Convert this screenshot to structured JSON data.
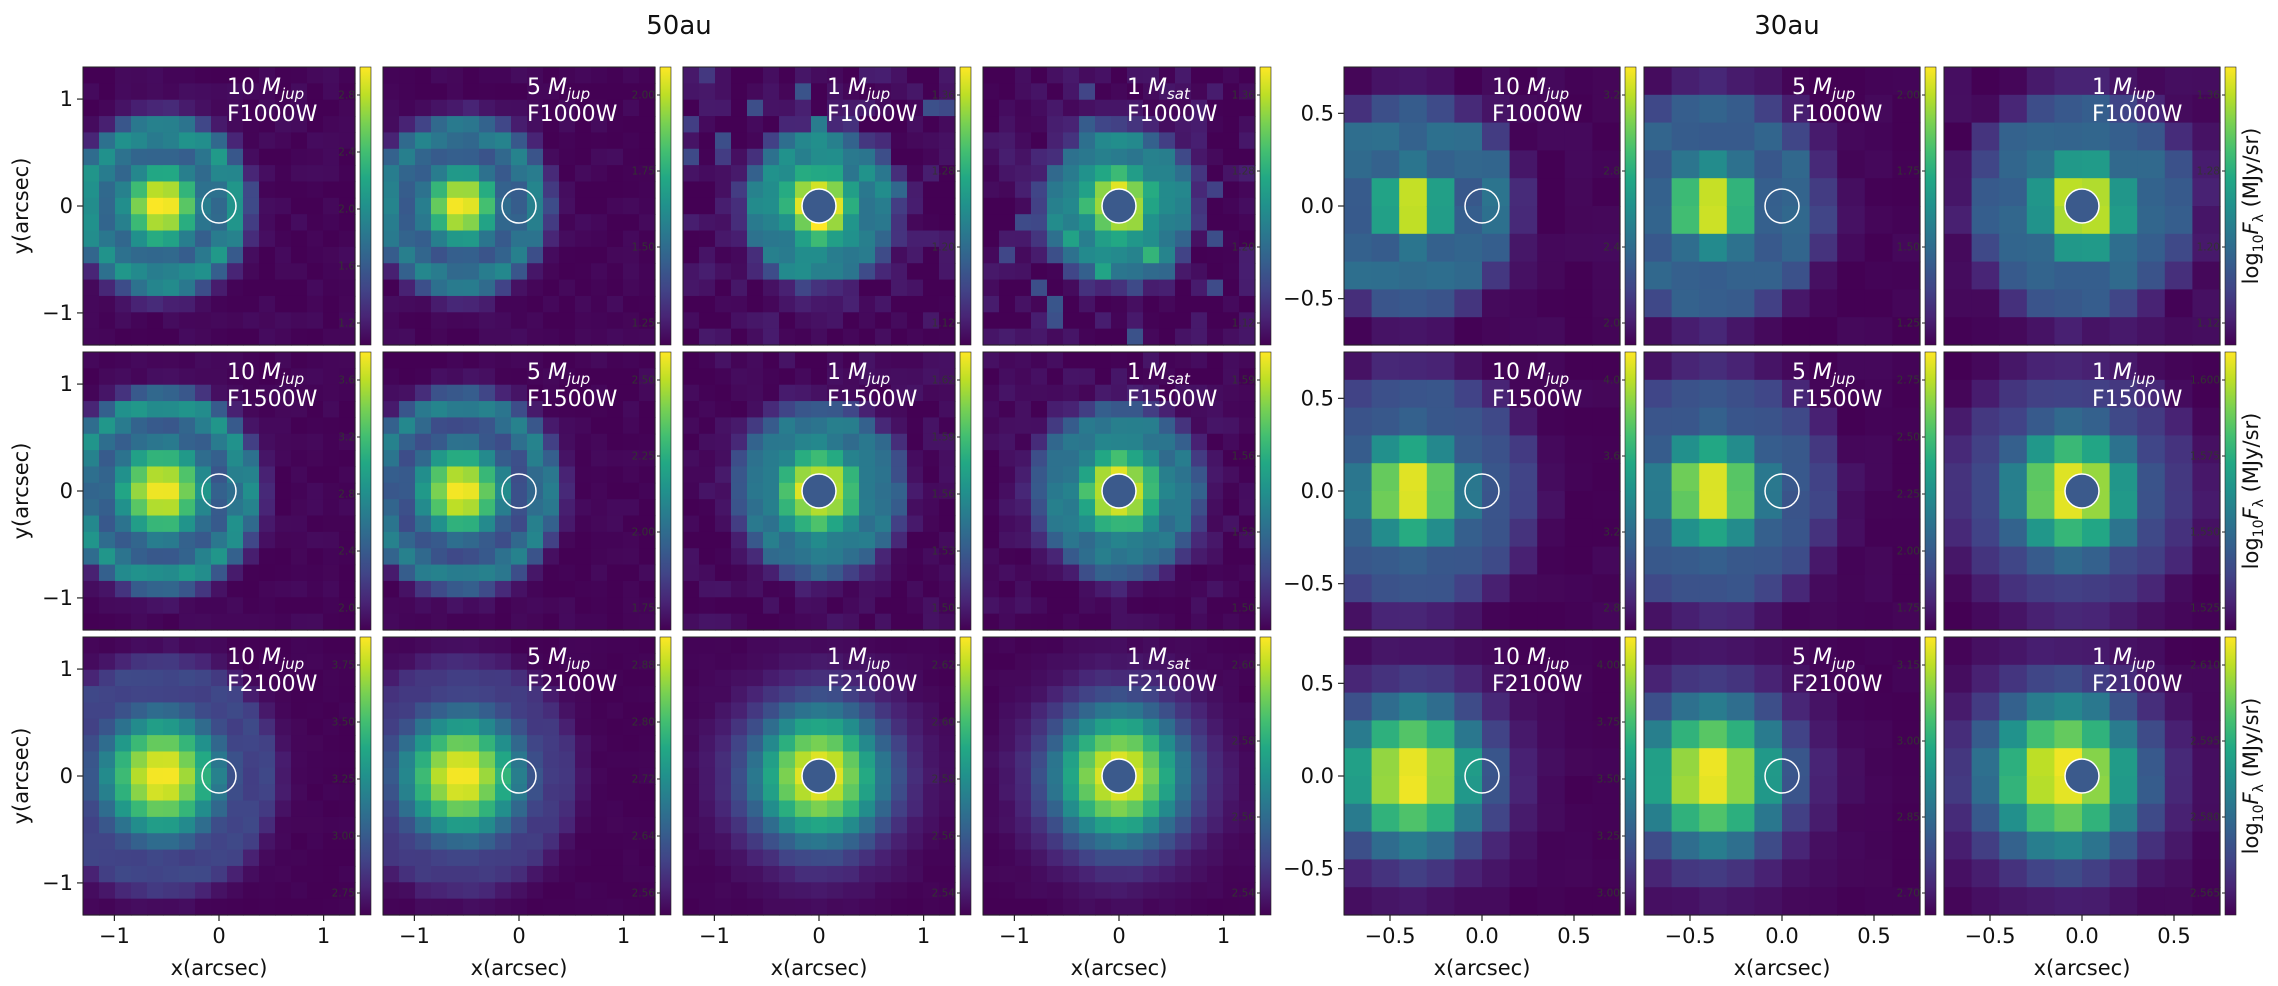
{
  "figure": {
    "group_titles": [
      "50au",
      "30au"
    ]
  },
  "chart_data": {
    "type": "heatmap",
    "colormap": "viridis",
    "groups": [
      {
        "title": "50au",
        "x_range": [
          -1.3,
          1.3
        ],
        "y_range": [
          -1.3,
          1.3
        ],
        "x_ticks": [
          -1,
          0,
          1
        ],
        "x_tick_labels": [
          "−1",
          "0",
          "1"
        ],
        "y_ticks": [
          -1,
          0,
          1
        ],
        "y_tick_labels": [
          "−1",
          "0",
          "1"
        ],
        "xlabel": "x(arcsec)",
        "ylabel": "y(arcsec)",
        "grid_cells": 17,
        "companion_x": 0.0,
        "panels": [
          {
            "mass": "10",
            "mass_unit": "jup",
            "filter": "F1000W",
            "cbar_ticks": [
              "2.8",
              "2.4",
              "2.0",
              "1.6",
              "1.2"
            ],
            "star_x": -0.55,
            "sigma": 0.3,
            "ring_amp": 0.45,
            "ring_radius": 0.72,
            "halo": 0.0,
            "noise": 0.05,
            "companion_filled": false
          },
          {
            "mass": "5",
            "mass_unit": "jup",
            "filter": "F1000W",
            "cbar_ticks": [
              "2.00",
              "1.75",
              "1.50",
              "1.25"
            ],
            "star_x": -0.55,
            "sigma": 0.28,
            "ring_amp": 0.4,
            "ring_radius": 0.72,
            "halo": 0.0,
            "noise": 0.05,
            "companion_filled": false
          },
          {
            "mass": "1",
            "mass_unit": "jup",
            "filter": "F1000W",
            "cbar_ticks": [
              "1.36",
              "1.28",
              "1.20",
              "1.12"
            ],
            "star_x": 0.0,
            "sigma": 0.3,
            "ring_amp": 0.3,
            "ring_radius": 0.62,
            "halo": 0.0,
            "noise": 0.12,
            "companion_filled": true
          },
          {
            "mass": "1",
            "mass_unit": "sat",
            "filter": "F1000W",
            "cbar_ticks": [
              "1.36",
              "1.28",
              "1.20",
              "1.12"
            ],
            "star_x": 0.0,
            "sigma": 0.3,
            "ring_amp": 0.3,
            "ring_radius": 0.62,
            "halo": 0.0,
            "noise": 0.12,
            "companion_filled": true
          },
          {
            "mass": "10",
            "mass_unit": "jup",
            "filter": "F1500W",
            "cbar_ticks": [
              "3.6",
              "3.2",
              "2.8",
              "2.4",
              "2.0"
            ],
            "star_x": -0.55,
            "sigma": 0.34,
            "ring_amp": 0.45,
            "ring_radius": 0.82,
            "halo": 0.0,
            "noise": 0.04,
            "companion_filled": false
          },
          {
            "mass": "5",
            "mass_unit": "jup",
            "filter": "F1500W",
            "cbar_ticks": [
              "2.50",
              "2.25",
              "2.00",
              "1.75"
            ],
            "star_x": -0.55,
            "sigma": 0.32,
            "ring_amp": 0.4,
            "ring_radius": 0.82,
            "halo": 0.0,
            "noise": 0.04,
            "companion_filled": false
          },
          {
            "mass": "1",
            "mass_unit": "jup",
            "filter": "F1500W",
            "cbar_ticks": [
              "1.62",
              "1.59",
              "1.56",
              "1.53",
              "1.50"
            ],
            "star_x": 0.0,
            "sigma": 0.34,
            "ring_amp": 0.25,
            "ring_radius": 0.7,
            "halo": 0.0,
            "noise": 0.08,
            "companion_filled": true
          },
          {
            "mass": "1",
            "mass_unit": "sat",
            "filter": "F1500W",
            "cbar_ticks": [
              "1.59",
              "1.56",
              "1.53",
              "1.50"
            ],
            "star_x": 0.0,
            "sigma": 0.34,
            "ring_amp": 0.25,
            "ring_radius": 0.7,
            "halo": 0.0,
            "noise": 0.08,
            "companion_filled": true
          },
          {
            "mass": "10",
            "mass_unit": "jup",
            "filter": "F2100W",
            "cbar_ticks": [
              "3.75",
              "3.50",
              "3.25",
              "3.00",
              "2.75"
            ],
            "star_x": -0.55,
            "sigma": 0.42,
            "ring_amp": 0.15,
            "ring_radius": 1.0,
            "halo": 0.0,
            "noise": 0.02,
            "companion_filled": false
          },
          {
            "mass": "5",
            "mass_unit": "jup",
            "filter": "F2100W",
            "cbar_ticks": [
              "2.88",
              "2.80",
              "2.72",
              "2.64",
              "2.56"
            ],
            "star_x": -0.55,
            "sigma": 0.42,
            "ring_amp": 0.1,
            "ring_radius": 1.0,
            "halo": 0.0,
            "noise": 0.02,
            "companion_filled": false
          },
          {
            "mass": "1",
            "mass_unit": "jup",
            "filter": "F2100W",
            "cbar_ticks": [
              "2.62",
              "2.60",
              "2.58",
              "2.56",
              "2.54"
            ],
            "star_x": 0.0,
            "sigma": 0.45,
            "ring_amp": 0.0,
            "ring_radius": 1.0,
            "halo": 0.0,
            "noise": 0.02,
            "companion_filled": true
          },
          {
            "mass": "1",
            "mass_unit": "sat",
            "filter": "F2100W",
            "cbar_ticks": [
              "2.60",
              "2.58",
              "2.56",
              "2.54"
            ],
            "star_x": 0.0,
            "sigma": 0.45,
            "ring_amp": 0.0,
            "ring_radius": 1.0,
            "halo": 0.0,
            "noise": 0.02,
            "companion_filled": true
          }
        ]
      },
      {
        "title": "30au",
        "x_range": [
          -0.75,
          0.75
        ],
        "y_range": [
          -0.75,
          0.75
        ],
        "x_ticks": [
          -0.5,
          0.0,
          0.5
        ],
        "x_tick_labels": [
          "−0.5",
          "0.0",
          "0.5"
        ],
        "y_ticks": [
          -0.5,
          0.0,
          0.5
        ],
        "y_tick_labels": [
          "−0.5",
          "0.0",
          "0.5"
        ],
        "xlabel": "x(arcsec)",
        "colorbar_label": "log10 Fλ (MJy/sr)",
        "grid_cells": 10,
        "companion_x": 0.0,
        "panels": [
          {
            "mass": "10",
            "mass_unit": "jup",
            "filter": "F1000W",
            "cbar_ticks": [
              "3.2",
              "2.8",
              "2.4",
              "2.0"
            ],
            "star_x": -0.38,
            "sigma": 0.15,
            "ring_amp": 0.35,
            "ring_radius": 0.45,
            "halo": 0.0,
            "noise": 0.04,
            "companion_filled": false
          },
          {
            "mass": "5",
            "mass_unit": "jup",
            "filter": "F1000W",
            "cbar_ticks": [
              "2.00",
              "1.75",
              "1.50",
              "1.25"
            ],
            "star_x": -0.38,
            "sigma": 0.18,
            "ring_amp": 0.3,
            "ring_radius": 0.5,
            "halo": 0.0,
            "noise": 0.04,
            "companion_filled": false
          },
          {
            "mass": "1",
            "mass_unit": "jup",
            "filter": "F1000W",
            "cbar_ticks": [
              "1.36",
              "1.28",
              "1.20",
              "1.12"
            ],
            "star_x": 0.0,
            "sigma": 0.2,
            "ring_amp": 0.25,
            "ring_radius": 0.5,
            "halo": 0.0,
            "noise": 0.06,
            "companion_filled": true
          },
          {
            "mass": "10",
            "mass_unit": "jup",
            "filter": "F1500W",
            "cbar_ticks": [
              "4.0",
              "3.6",
              "3.2",
              "2.8"
            ],
            "star_x": -0.38,
            "sigma": 0.22,
            "ring_amp": 0.2,
            "ring_radius": 0.55,
            "halo": 0.0,
            "noise": 0.03,
            "companion_filled": false
          },
          {
            "mass": "5",
            "mass_unit": "jup",
            "filter": "F1500W",
            "cbar_ticks": [
              "2.75",
              "2.50",
              "2.25",
              "2.00",
              "1.75"
            ],
            "star_x": -0.38,
            "sigma": 0.22,
            "ring_amp": 0.2,
            "ring_radius": 0.55,
            "halo": 0.0,
            "noise": 0.03,
            "companion_filled": false
          },
          {
            "mass": "1",
            "mass_unit": "jup",
            "filter": "F1500W",
            "cbar_ticks": [
              "1.600",
              "1.575",
              "1.550",
              "1.525"
            ],
            "star_x": -0.05,
            "sigma": 0.25,
            "ring_amp": 0.1,
            "ring_radius": 0.6,
            "halo": 0.0,
            "noise": 0.02,
            "companion_filled": true
          },
          {
            "mass": "10",
            "mass_unit": "jup",
            "filter": "F2100W",
            "cbar_ticks": [
              "4.00",
              "3.75",
              "3.50",
              "3.25",
              "3.00"
            ],
            "star_x": -0.38,
            "sigma": 0.28,
            "ring_amp": 0.0,
            "ring_radius": 0.7,
            "halo": 0.0,
            "noise": 0.02,
            "companion_filled": false
          },
          {
            "mass": "5",
            "mass_unit": "jup",
            "filter": "F2100W",
            "cbar_ticks": [
              "3.15",
              "3.00",
              "2.85",
              "2.70"
            ],
            "star_x": -0.38,
            "sigma": 0.28,
            "ring_amp": 0.0,
            "ring_radius": 0.7,
            "halo": 0.0,
            "noise": 0.02,
            "companion_filled": false
          },
          {
            "mass": "1",
            "mass_unit": "jup",
            "filter": "F2100W",
            "cbar_ticks": [
              "2.610",
              "2.595",
              "2.580",
              "2.565"
            ],
            "star_x": -0.1,
            "sigma": 0.3,
            "ring_amp": 0.0,
            "ring_radius": 0.7,
            "halo": 0.0,
            "noise": 0.02,
            "companion_filled": true
          }
        ]
      }
    ]
  }
}
